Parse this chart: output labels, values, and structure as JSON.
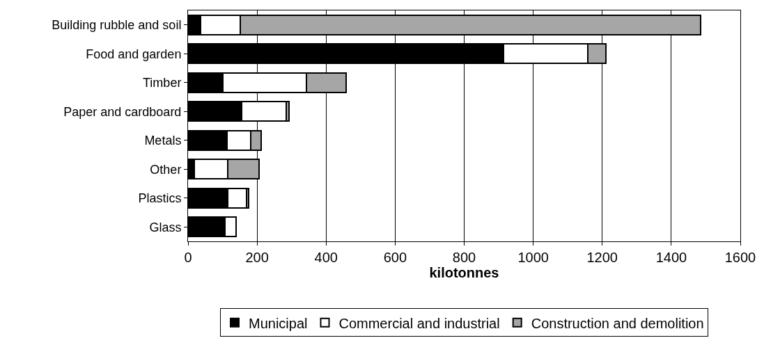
{
  "chart_data": {
    "type": "bar",
    "orientation": "horizontal",
    "stacked": true,
    "xlabel": "kilotonnes",
    "categories": [
      "Building rubble and soil",
      "Food and garden",
      "Timber",
      "Paper and cardboard",
      "Metals",
      "Other",
      "Plastics",
      "Glass"
    ],
    "series": [
      {
        "name": "Municipal",
        "color": "#000000",
        "values": [
          37,
          914,
          101,
          155,
          112,
          19,
          114,
          106
        ]
      },
      {
        "name": "Commercial and industrial",
        "color": "#ffffff",
        "values": [
          114,
          244,
          241,
          129,
          70,
          95,
          55,
          34
        ]
      },
      {
        "name": "Construction and demolition",
        "color": "#a6a6a6",
        "values": [
          1334,
          52,
          115,
          8,
          29,
          92,
          7,
          null
        ]
      }
    ],
    "xlim": [
      0,
      1600
    ],
    "xticks": [
      0,
      200,
      400,
      600,
      800,
      1000,
      1200,
      1400,
      1600
    ],
    "grid": "x",
    "legend": "bottom"
  }
}
